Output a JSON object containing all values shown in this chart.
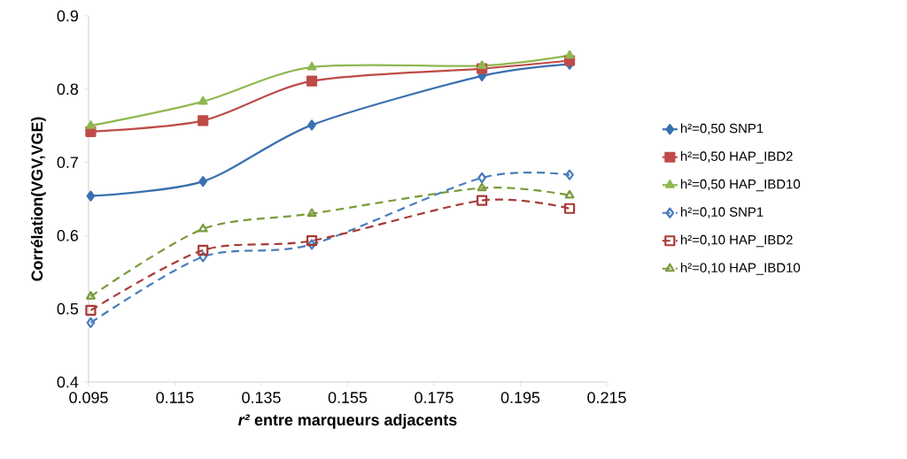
{
  "chart_data": {
    "type": "line",
    "xlabel": "*r²* entre marqueurs adjacents",
    "ylabel": "Corrélation(VGV,VGE)",
    "x": [
      0.0955,
      0.1215,
      0.1467,
      0.1861,
      0.2064
    ],
    "xlim": [
      0.095,
      0.215
    ],
    "xticks": [
      0.095,
      0.115,
      0.135,
      0.155,
      0.175,
      0.195,
      0.215
    ],
    "ylim": [
      0.4,
      0.9
    ],
    "yticks": [
      0.4,
      0.5,
      0.6,
      0.7,
      0.8,
      0.9
    ],
    "grid": false,
    "legend": "right",
    "series": [
      {
        "name": "h²=0,50 SNP1",
        "color": "#3a70b0",
        "marker": "diamond",
        "line_style": "solid",
        "values": [
          0.654,
          0.674,
          0.751,
          0.818,
          0.834
        ]
      },
      {
        "name": "h²=0,50 HAP_IBD2",
        "color": "#be4b48",
        "marker": "square",
        "line_style": "solid",
        "values": [
          0.742,
          0.757,
          0.811,
          0.828,
          0.839
        ]
      },
      {
        "name": "h²=0,50 HAP_IBD10",
        "color": "#8fb850",
        "marker": "triangle",
        "line_style": "solid",
        "values": [
          0.75,
          0.783,
          0.83,
          0.832,
          0.846
        ]
      },
      {
        "name": "h²=0,10 SNP1",
        "color": "#4a7ebb",
        "marker": "diamond",
        "line_style": "dashed",
        "values": [
          0.481,
          0.571,
          0.588,
          0.679,
          0.683
        ]
      },
      {
        "name": "h²=0,10 HAP_IBD2",
        "color": "#a83a36",
        "marker": "square",
        "line_style": "dashed",
        "values": [
          0.498,
          0.58,
          0.593,
          0.648,
          0.637
        ]
      },
      {
        "name": "h²=0,10 HAP_IBD10",
        "color": "#7a9a3a",
        "marker": "triangle",
        "line_style": "dashed",
        "values": [
          0.517,
          0.609,
          0.63,
          0.665,
          0.655
        ]
      }
    ]
  }
}
